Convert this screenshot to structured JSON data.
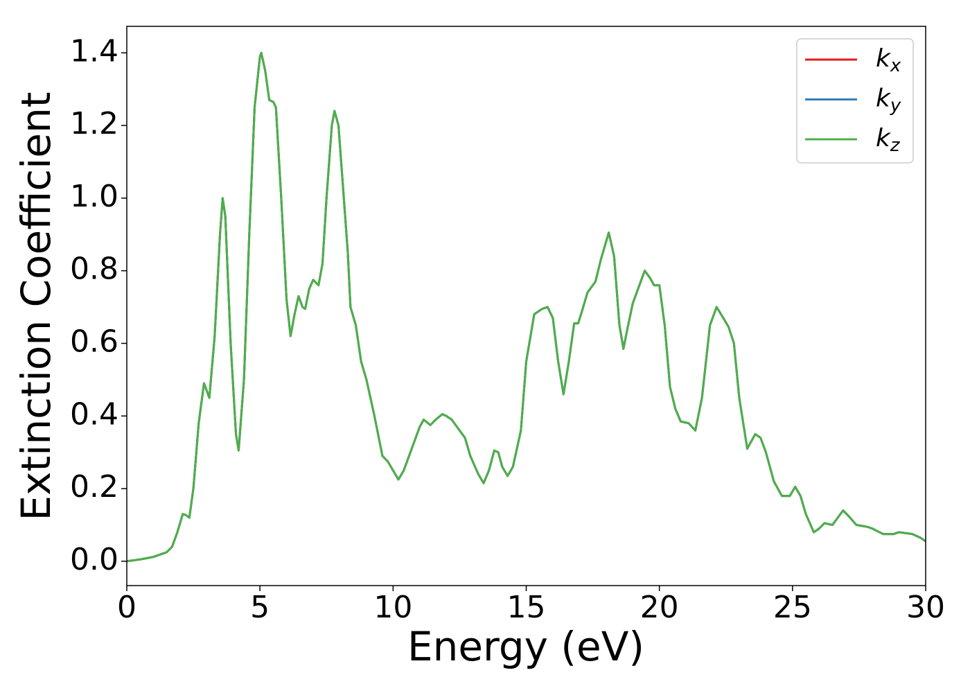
{
  "chart_data": {
    "type": "line",
    "xlabel": "Energy (eV)",
    "ylabel": "Extinction Coefficient",
    "xlim": [
      0,
      30
    ],
    "ylim": [
      -0.067,
      1.473
    ],
    "xticks": [
      0,
      5,
      10,
      15,
      20,
      25,
      30
    ],
    "yticks": [
      {
        "value": 0,
        "label": "0.0"
      },
      0.2,
      0.4,
      0.6,
      0.8,
      {
        "value": 1,
        "label": "1.0"
      },
      1.2,
      1.4
    ],
    "legend": "upper right",
    "x": [
      0,
      0.5,
      1.0,
      1.5,
      1.7,
      1.9,
      2.1,
      2.2,
      2.35,
      2.5,
      2.7,
      2.9,
      3.0,
      3.1,
      3.3,
      3.5,
      3.6,
      3.7,
      3.9,
      4.1,
      4.2,
      4.4,
      4.6,
      4.8,
      5.0,
      5.05,
      5.2,
      5.35,
      5.5,
      5.6,
      5.8,
      6.0,
      6.15,
      6.3,
      6.45,
      6.6,
      6.7,
      6.85,
      7.0,
      7.2,
      7.35,
      7.5,
      7.7,
      7.8,
      7.95,
      8.1,
      8.3,
      8.4,
      8.6,
      8.8,
      9.0,
      9.3,
      9.6,
      9.8,
      10.0,
      10.2,
      10.4,
      10.7,
      11.0,
      11.15,
      11.4,
      11.6,
      11.85,
      12.0,
      12.2,
      12.4,
      12.7,
      12.9,
      13.2,
      13.4,
      13.6,
      13.8,
      13.95,
      14.1,
      14.3,
      14.5,
      14.8,
      15.0,
      15.3,
      15.6,
      15.8,
      16.0,
      16.2,
      16.4,
      16.6,
      16.8,
      16.95,
      17.1,
      17.3,
      17.6,
      17.8,
      18.1,
      18.3,
      18.5,
      18.65,
      18.8,
      19.0,
      19.2,
      19.45,
      19.65,
      19.8,
      20.0,
      20.2,
      20.4,
      20.6,
      20.8,
      21.1,
      21.35,
      21.6,
      21.9,
      22.15,
      22.4,
      22.6,
      22.8,
      23.0,
      23.3,
      23.6,
      23.8,
      24.0,
      24.3,
      24.6,
      24.9,
      25.1,
      25.3,
      25.5,
      25.8,
      26.0,
      26.2,
      26.5,
      26.8,
      26.9,
      27.1,
      27.4,
      27.8,
      28.0,
      28.4,
      28.8,
      29.0,
      29.5,
      29.8,
      30.0
    ],
    "series": [
      {
        "name": "kx",
        "color": "#e41a1c",
        "values": [
          0.0,
          0.005,
          0.012,
          0.025,
          0.04,
          0.08,
          0.13,
          0.128,
          0.12,
          0.2,
          0.38,
          0.49,
          0.47,
          0.45,
          0.62,
          0.9,
          1.0,
          0.95,
          0.6,
          0.35,
          0.305,
          0.5,
          0.9,
          1.25,
          1.39,
          1.4,
          1.35,
          1.27,
          1.265,
          1.25,
          1.0,
          0.72,
          0.62,
          0.68,
          0.73,
          0.7,
          0.695,
          0.75,
          0.775,
          0.76,
          0.82,
          1.0,
          1.2,
          1.24,
          1.2,
          1.05,
          0.85,
          0.7,
          0.65,
          0.55,
          0.5,
          0.4,
          0.29,
          0.275,
          0.25,
          0.225,
          0.25,
          0.31,
          0.37,
          0.39,
          0.375,
          0.39,
          0.405,
          0.4,
          0.39,
          0.37,
          0.34,
          0.29,
          0.24,
          0.215,
          0.25,
          0.305,
          0.3,
          0.26,
          0.235,
          0.26,
          0.36,
          0.55,
          0.68,
          0.695,
          0.7,
          0.67,
          0.55,
          0.46,
          0.55,
          0.655,
          0.655,
          0.69,
          0.74,
          0.77,
          0.83,
          0.905,
          0.84,
          0.65,
          0.585,
          0.64,
          0.71,
          0.75,
          0.8,
          0.78,
          0.76,
          0.76,
          0.65,
          0.48,
          0.42,
          0.385,
          0.38,
          0.36,
          0.45,
          0.65,
          0.7,
          0.67,
          0.645,
          0.6,
          0.45,
          0.31,
          0.35,
          0.34,
          0.3,
          0.22,
          0.18,
          0.18,
          0.205,
          0.18,
          0.13,
          0.08,
          0.09,
          0.105,
          0.1,
          0.13,
          0.14,
          0.125,
          0.1,
          0.095,
          0.09,
          0.075,
          0.075,
          0.08,
          0.075,
          0.065,
          0.055
        ]
      },
      {
        "name": "ky",
        "color": "#377eb8",
        "values": [
          0.0,
          0.005,
          0.012,
          0.025,
          0.04,
          0.08,
          0.13,
          0.128,
          0.12,
          0.2,
          0.38,
          0.49,
          0.47,
          0.45,
          0.62,
          0.9,
          1.0,
          0.95,
          0.6,
          0.35,
          0.305,
          0.5,
          0.9,
          1.25,
          1.39,
          1.4,
          1.35,
          1.27,
          1.265,
          1.25,
          1.0,
          0.72,
          0.62,
          0.68,
          0.73,
          0.7,
          0.695,
          0.75,
          0.775,
          0.76,
          0.82,
          1.0,
          1.2,
          1.24,
          1.2,
          1.05,
          0.85,
          0.7,
          0.65,
          0.55,
          0.5,
          0.4,
          0.29,
          0.275,
          0.25,
          0.225,
          0.25,
          0.31,
          0.37,
          0.39,
          0.375,
          0.39,
          0.405,
          0.4,
          0.39,
          0.37,
          0.34,
          0.29,
          0.24,
          0.215,
          0.25,
          0.305,
          0.3,
          0.26,
          0.235,
          0.26,
          0.36,
          0.55,
          0.68,
          0.695,
          0.7,
          0.67,
          0.55,
          0.46,
          0.55,
          0.655,
          0.655,
          0.69,
          0.74,
          0.77,
          0.83,
          0.905,
          0.84,
          0.65,
          0.585,
          0.64,
          0.71,
          0.75,
          0.8,
          0.78,
          0.76,
          0.76,
          0.65,
          0.48,
          0.42,
          0.385,
          0.38,
          0.36,
          0.45,
          0.65,
          0.7,
          0.67,
          0.645,
          0.6,
          0.45,
          0.31,
          0.35,
          0.34,
          0.3,
          0.22,
          0.18,
          0.18,
          0.205,
          0.18,
          0.13,
          0.08,
          0.09,
          0.105,
          0.1,
          0.13,
          0.14,
          0.125,
          0.1,
          0.095,
          0.09,
          0.075,
          0.075,
          0.08,
          0.075,
          0.065,
          0.055
        ]
      },
      {
        "name": "kz",
        "color": "#4daf4a",
        "values": [
          0.0,
          0.005,
          0.012,
          0.025,
          0.04,
          0.08,
          0.13,
          0.128,
          0.12,
          0.2,
          0.38,
          0.49,
          0.47,
          0.45,
          0.62,
          0.9,
          1.0,
          0.95,
          0.6,
          0.35,
          0.305,
          0.5,
          0.9,
          1.25,
          1.39,
          1.4,
          1.35,
          1.27,
          1.265,
          1.25,
          1.0,
          0.72,
          0.62,
          0.68,
          0.73,
          0.7,
          0.695,
          0.75,
          0.775,
          0.76,
          0.82,
          1.0,
          1.2,
          1.24,
          1.2,
          1.05,
          0.85,
          0.7,
          0.65,
          0.55,
          0.5,
          0.4,
          0.29,
          0.275,
          0.25,
          0.225,
          0.25,
          0.31,
          0.37,
          0.39,
          0.375,
          0.39,
          0.405,
          0.4,
          0.39,
          0.37,
          0.34,
          0.29,
          0.24,
          0.215,
          0.25,
          0.305,
          0.3,
          0.26,
          0.235,
          0.26,
          0.36,
          0.55,
          0.68,
          0.695,
          0.7,
          0.67,
          0.55,
          0.46,
          0.55,
          0.655,
          0.655,
          0.69,
          0.74,
          0.77,
          0.83,
          0.905,
          0.84,
          0.65,
          0.585,
          0.64,
          0.71,
          0.75,
          0.8,
          0.78,
          0.76,
          0.76,
          0.65,
          0.48,
          0.42,
          0.385,
          0.38,
          0.36,
          0.45,
          0.65,
          0.7,
          0.67,
          0.645,
          0.6,
          0.45,
          0.31,
          0.35,
          0.34,
          0.3,
          0.22,
          0.18,
          0.18,
          0.205,
          0.18,
          0.13,
          0.08,
          0.09,
          0.105,
          0.1,
          0.13,
          0.14,
          0.125,
          0.1,
          0.095,
          0.09,
          0.075,
          0.075,
          0.08,
          0.075,
          0.065,
          0.055
        ]
      }
    ]
  }
}
